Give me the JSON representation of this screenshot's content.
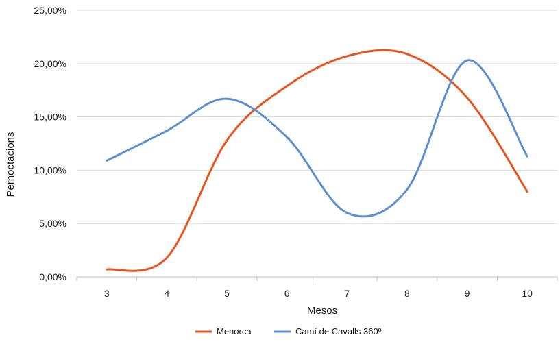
{
  "chart_data": {
    "type": "line",
    "title": "",
    "xlabel": "Mesos",
    "ylabel": "Pernoctacions",
    "categories": [
      "3",
      "4",
      "5",
      "6",
      "7",
      "8",
      "9",
      "10"
    ],
    "ylim": [
      0,
      25
    ],
    "yticks": [
      "0,00%",
      "5,00%",
      "10,00%",
      "15,00%",
      "20,00%",
      "25,00%"
    ],
    "grid": "horizontal",
    "legend_position": "bottom",
    "series": [
      {
        "name": "Menorca",
        "color": "#E8541F",
        "values": [
          0.7,
          1.8,
          12.8,
          17.9,
          20.7,
          20.9,
          16.8,
          8.0
        ]
      },
      {
        "name": "Camí de Cavalls 360º",
        "color": "#5B8FD0",
        "values": [
          10.9,
          13.7,
          16.7,
          13.1,
          6.0,
          8.2,
          20.3,
          11.3
        ]
      }
    ]
  }
}
